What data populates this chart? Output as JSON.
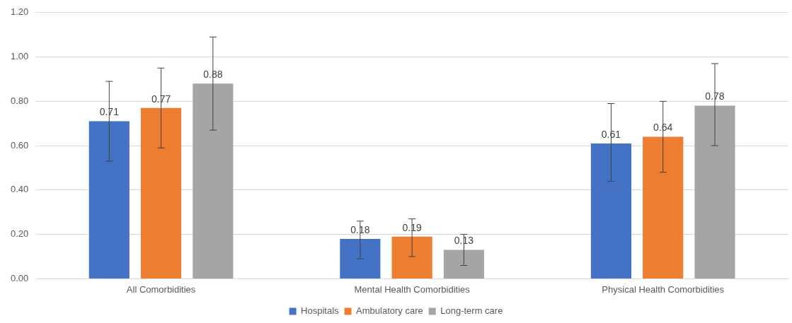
{
  "chart_data": {
    "type": "bar",
    "categories": [
      "All Comorbidities",
      "Mental Health Comorbidities",
      "Physical Health Comorbidities"
    ],
    "series": [
      {
        "name": "Hospitals",
        "color": "#4472c4",
        "values": [
          0.71,
          0.18,
          0.61
        ],
        "errors": [
          [
            0.53,
            0.89
          ],
          [
            0.09,
            0.26
          ],
          [
            0.44,
            0.79
          ]
        ]
      },
      {
        "name": "Ambulatory care",
        "color": "#ed7d31",
        "values": [
          0.77,
          0.19,
          0.64
        ],
        "errors": [
          [
            0.59,
            0.95
          ],
          [
            0.1,
            0.27
          ],
          [
            0.48,
            0.8
          ]
        ]
      },
      {
        "name": "Long-term care",
        "color": "#a5a5a5",
        "values": [
          0.88,
          0.13,
          0.78
        ],
        "errors": [
          [
            0.67,
            1.09
          ],
          [
            0.06,
            0.2
          ],
          [
            0.6,
            0.97
          ]
        ]
      }
    ],
    "ylim": [
      0,
      1.2
    ],
    "yticks": [
      {
        "value": 0,
        "label": "0.00"
      },
      {
        "value": 0.2,
        "label": "0.20"
      },
      {
        "value": 0.4,
        "label": "0.40"
      },
      {
        "value": 0.6,
        "label": "0.60"
      },
      {
        "value": 0.8,
        "label": "0.80"
      },
      {
        "value": 1.0,
        "label": "1.00"
      },
      {
        "value": 1.2,
        "label": "1.20"
      }
    ],
    "grid": "y",
    "legend": "bottom",
    "data_labels": true
  }
}
